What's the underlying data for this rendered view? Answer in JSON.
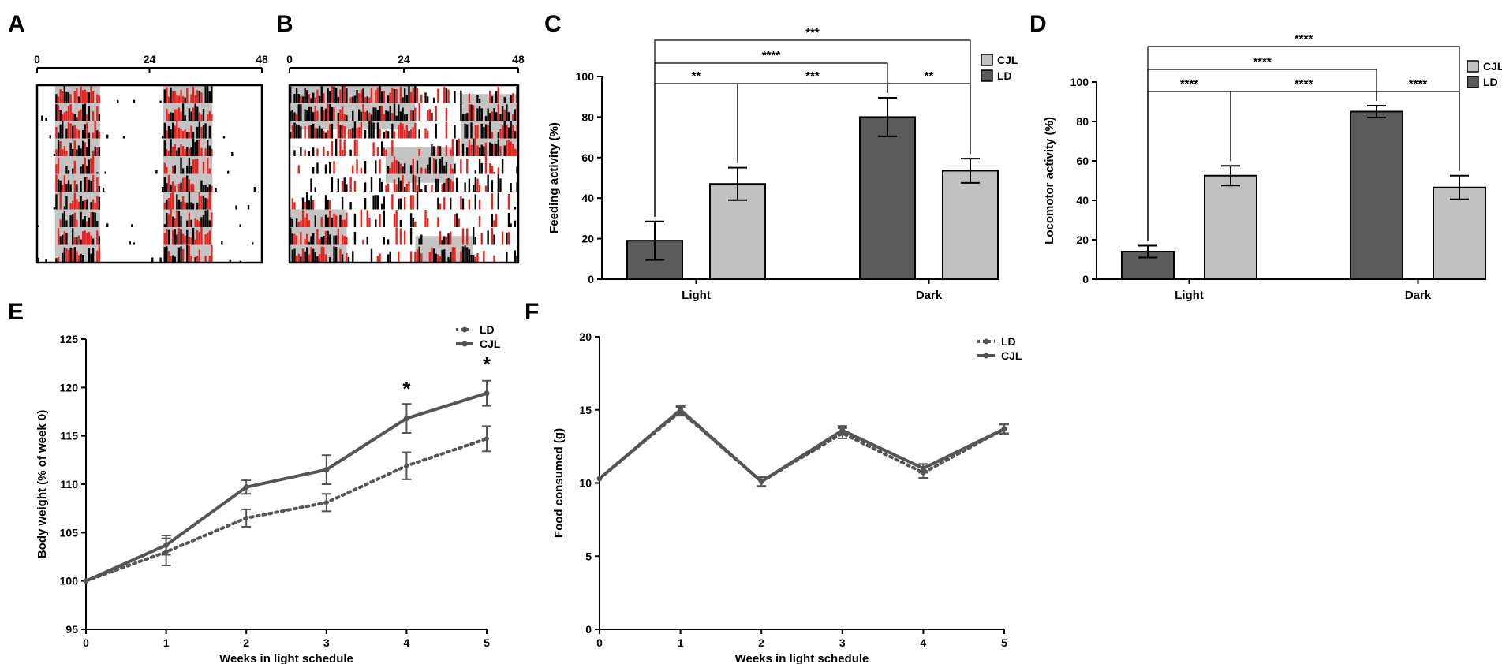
{
  "panel_letters": {
    "A": "A",
    "B": "B",
    "C": "C",
    "D": "D",
    "E": "E",
    "F": "F"
  },
  "colors": {
    "dark_bar": "#5a5a5a",
    "light_bar": "#c0c0c0",
    "line": "#555555",
    "actogram_red": "#e8221c",
    "actogram_black": "#000000",
    "actogram_shade": "#c4c4c4"
  },
  "chart_data": [
    {
      "id": "A",
      "type": "actogram",
      "axis_ticks": [
        "0",
        "24",
        "48"
      ],
      "rows": 10
    },
    {
      "id": "B",
      "type": "actogram",
      "axis_ticks": [
        "0",
        "24",
        "48"
      ],
      "rows": 10
    },
    {
      "id": "C",
      "type": "bar",
      "categories": [
        "Light",
        "Dark"
      ],
      "series": [
        {
          "name": "LD",
          "values": [
            19,
            80
          ],
          "errors": [
            9.5,
            9.5
          ]
        },
        {
          "name": "CJL",
          "values": [
            47,
            53.5
          ],
          "errors": [
            8,
            6
          ]
        }
      ],
      "legend": [
        "CJL",
        "LD"
      ],
      "ylabel": "Feeding activity (%)",
      "ylim": [
        0,
        100
      ],
      "yticks": [
        "0",
        "20",
        "40",
        "60",
        "80",
        "100"
      ],
      "significance": [
        {
          "text": "**",
          "from": "Light-LD",
          "to": "Light-CJL"
        },
        {
          "text": "***",
          "from": "Light-CJL",
          "to": "Dark-LD"
        },
        {
          "text": "**",
          "from": "Dark-LD",
          "to": "Dark-CJL"
        },
        {
          "text": "****",
          "from": "Light-LD",
          "to": "Dark-LD"
        },
        {
          "text": "***",
          "from": "Light-LD",
          "to": "Dark-CJL"
        }
      ]
    },
    {
      "id": "D",
      "type": "bar",
      "categories": [
        "Light",
        "Dark"
      ],
      "series": [
        {
          "name": "LD",
          "values": [
            14,
            85
          ],
          "errors": [
            3,
            3
          ]
        },
        {
          "name": "CJL",
          "values": [
            52.5,
            46.5
          ],
          "errors": [
            5,
            6
          ]
        }
      ],
      "legend": [
        "CJL",
        "LD"
      ],
      "ylabel": "Locomotor activity (%)",
      "ylim": [
        0,
        100
      ],
      "yticks": [
        "0",
        "20",
        "40",
        "60",
        "80",
        "100"
      ],
      "significance": [
        {
          "text": "****",
          "from": "Light-LD",
          "to": "Light-CJL"
        },
        {
          "text": "****",
          "from": "Light-CJL",
          "to": "Dark-LD"
        },
        {
          "text": "****",
          "from": "Dark-LD",
          "to": "Dark-CJL"
        },
        {
          "text": "****",
          "from": "Light-LD",
          "to": "Dark-LD"
        },
        {
          "text": "****",
          "from": "Light-LD",
          "to": "Dark-CJL"
        }
      ]
    },
    {
      "id": "E",
      "type": "line",
      "x": [
        0,
        1,
        2,
        3,
        4,
        5
      ],
      "series": [
        {
          "name": "LD",
          "style": "dotted",
          "values": [
            100,
            103,
            106.5,
            108.1,
            111.9,
            114.7
          ],
          "errors": [
            0,
            1.4,
            0.9,
            0.9,
            1.4,
            1.3
          ]
        },
        {
          "name": "CJL",
          "style": "solid",
          "values": [
            100,
            103.7,
            109.7,
            111.5,
            116.8,
            119.4
          ],
          "errors": [
            0,
            1,
            0.7,
            1.5,
            1.5,
            1.3
          ]
        }
      ],
      "legend": [
        "LD",
        "CJL"
      ],
      "xlabel": "Weeks in light schedule",
      "ylabel": "Body weight (% of week 0)",
      "ylim": [
        95,
        125
      ],
      "yticks": [
        "95",
        "100",
        "105",
        "110",
        "115",
        "120",
        "125"
      ],
      "xticks": [
        "0",
        "1",
        "2",
        "3",
        "4",
        "5"
      ],
      "annotations": [
        {
          "text": "*",
          "x": 4
        },
        {
          "text": "*",
          "x": 5
        }
      ]
    },
    {
      "id": "F",
      "type": "line",
      "x": [
        0,
        1,
        2,
        3,
        4,
        5
      ],
      "series": [
        {
          "name": "LD",
          "style": "dotted",
          "values": [
            10.3,
            14.9,
            10.1,
            13.4,
            10.7,
            13.7
          ],
          "errors": [
            0,
            0.3,
            0.35,
            0.35,
            0.35,
            0.35
          ]
        },
        {
          "name": "CJL",
          "style": "solid",
          "values": [
            10.3,
            15.0,
            10.1,
            13.6,
            11.0,
            13.7
          ],
          "errors": [
            0,
            0.3,
            0.3,
            0.3,
            0.3,
            0.3
          ]
        }
      ],
      "legend": [
        "LD",
        "CJL"
      ],
      "xlabel": "Weeks in light schedule",
      "ylabel": "Food consumed (g)",
      "ylim": [
        0,
        20
      ],
      "yticks": [
        "0",
        "5",
        "10",
        "15",
        "20"
      ],
      "xticks": [
        "0",
        "1",
        "2",
        "3",
        "4",
        "5"
      ]
    }
  ]
}
